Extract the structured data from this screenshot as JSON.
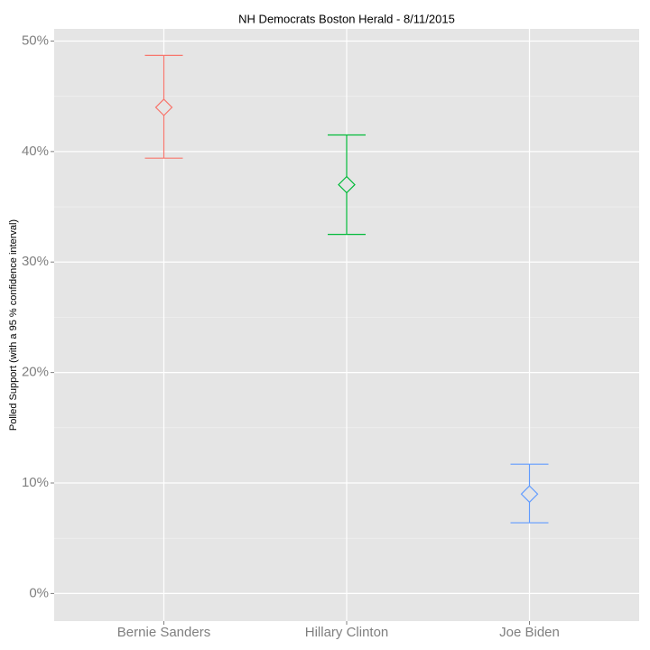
{
  "chart_data": {
    "type": "errorbar",
    "title": "NH Democrats Boston Herald - 8/11/2015",
    "y_label": "Polled Support (with a  95 % confidence interval)",
    "categories": [
      "Bernie Sanders",
      "Hillary Clinton",
      "Joe Biden"
    ],
    "values": [
      44,
      37,
      9
    ],
    "lower": [
      39.4,
      32.5,
      6.4
    ],
    "upper": [
      48.7,
      41.5,
      11.7
    ],
    "colors": [
      "#f8766d",
      "#00ba38",
      "#619cff"
    ],
    "ylim": [
      -2.5,
      51.1
    ],
    "yticks": [
      {
        "value": 0,
        "label": "0%"
      },
      {
        "value": 10,
        "label": "10%"
      },
      {
        "value": 20,
        "label": "20%"
      },
      {
        "value": 30,
        "label": "30%"
      },
      {
        "value": 40,
        "label": "40%"
      },
      {
        "value": 50,
        "label": "50%"
      }
    ],
    "minor_yticks": [
      5,
      15,
      25,
      35,
      45
    ],
    "grid": true
  }
}
